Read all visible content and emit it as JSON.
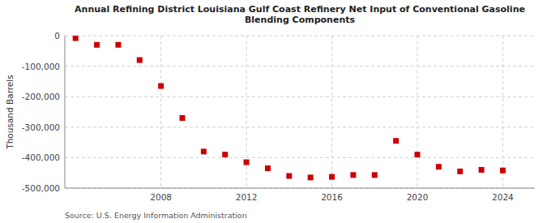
{
  "chart_data": {
    "type": "scatter",
    "title": "Annual Refining District Louisiana Gulf Coast Refinery Net Input of Conventional Gasoline\nBlending Components",
    "ylabel": "Thousand Barrels",
    "source": "Source: U.S. Energy Information Administration",
    "x": [
      2004,
      2005,
      2006,
      2007,
      2008,
      2009,
      2010,
      2011,
      2012,
      2013,
      2014,
      2015,
      2016,
      2017,
      2018,
      2019,
      2020,
      2021,
      2022,
      2023,
      2024
    ],
    "values": [
      -8000,
      -30000,
      -30000,
      -80000,
      -165000,
      -270000,
      -380000,
      -390000,
      -415000,
      -435000,
      -460000,
      -465000,
      -463000,
      -457000,
      -457000,
      -345000,
      -390000,
      -430000,
      -445000,
      -440000,
      -442000
    ],
    "color": "#cc0000",
    "marker": "square",
    "xlim": [
      2003.5,
      2025.5
    ],
    "xticks": [
      2008,
      2012,
      2016,
      2020,
      2024
    ],
    "ylim": [
      -500000,
      0
    ],
    "yticks": [
      0,
      {
        "value": -100000,
        "label": "-100,000"
      },
      {
        "value": -200000,
        "label": "-200,000"
      },
      {
        "value": -300000,
        "label": "-300,000"
      },
      {
        "value": -400000,
        "label": "-400,000"
      },
      {
        "value": -500000,
        "label": "-500,000"
      }
    ],
    "grid": true
  }
}
